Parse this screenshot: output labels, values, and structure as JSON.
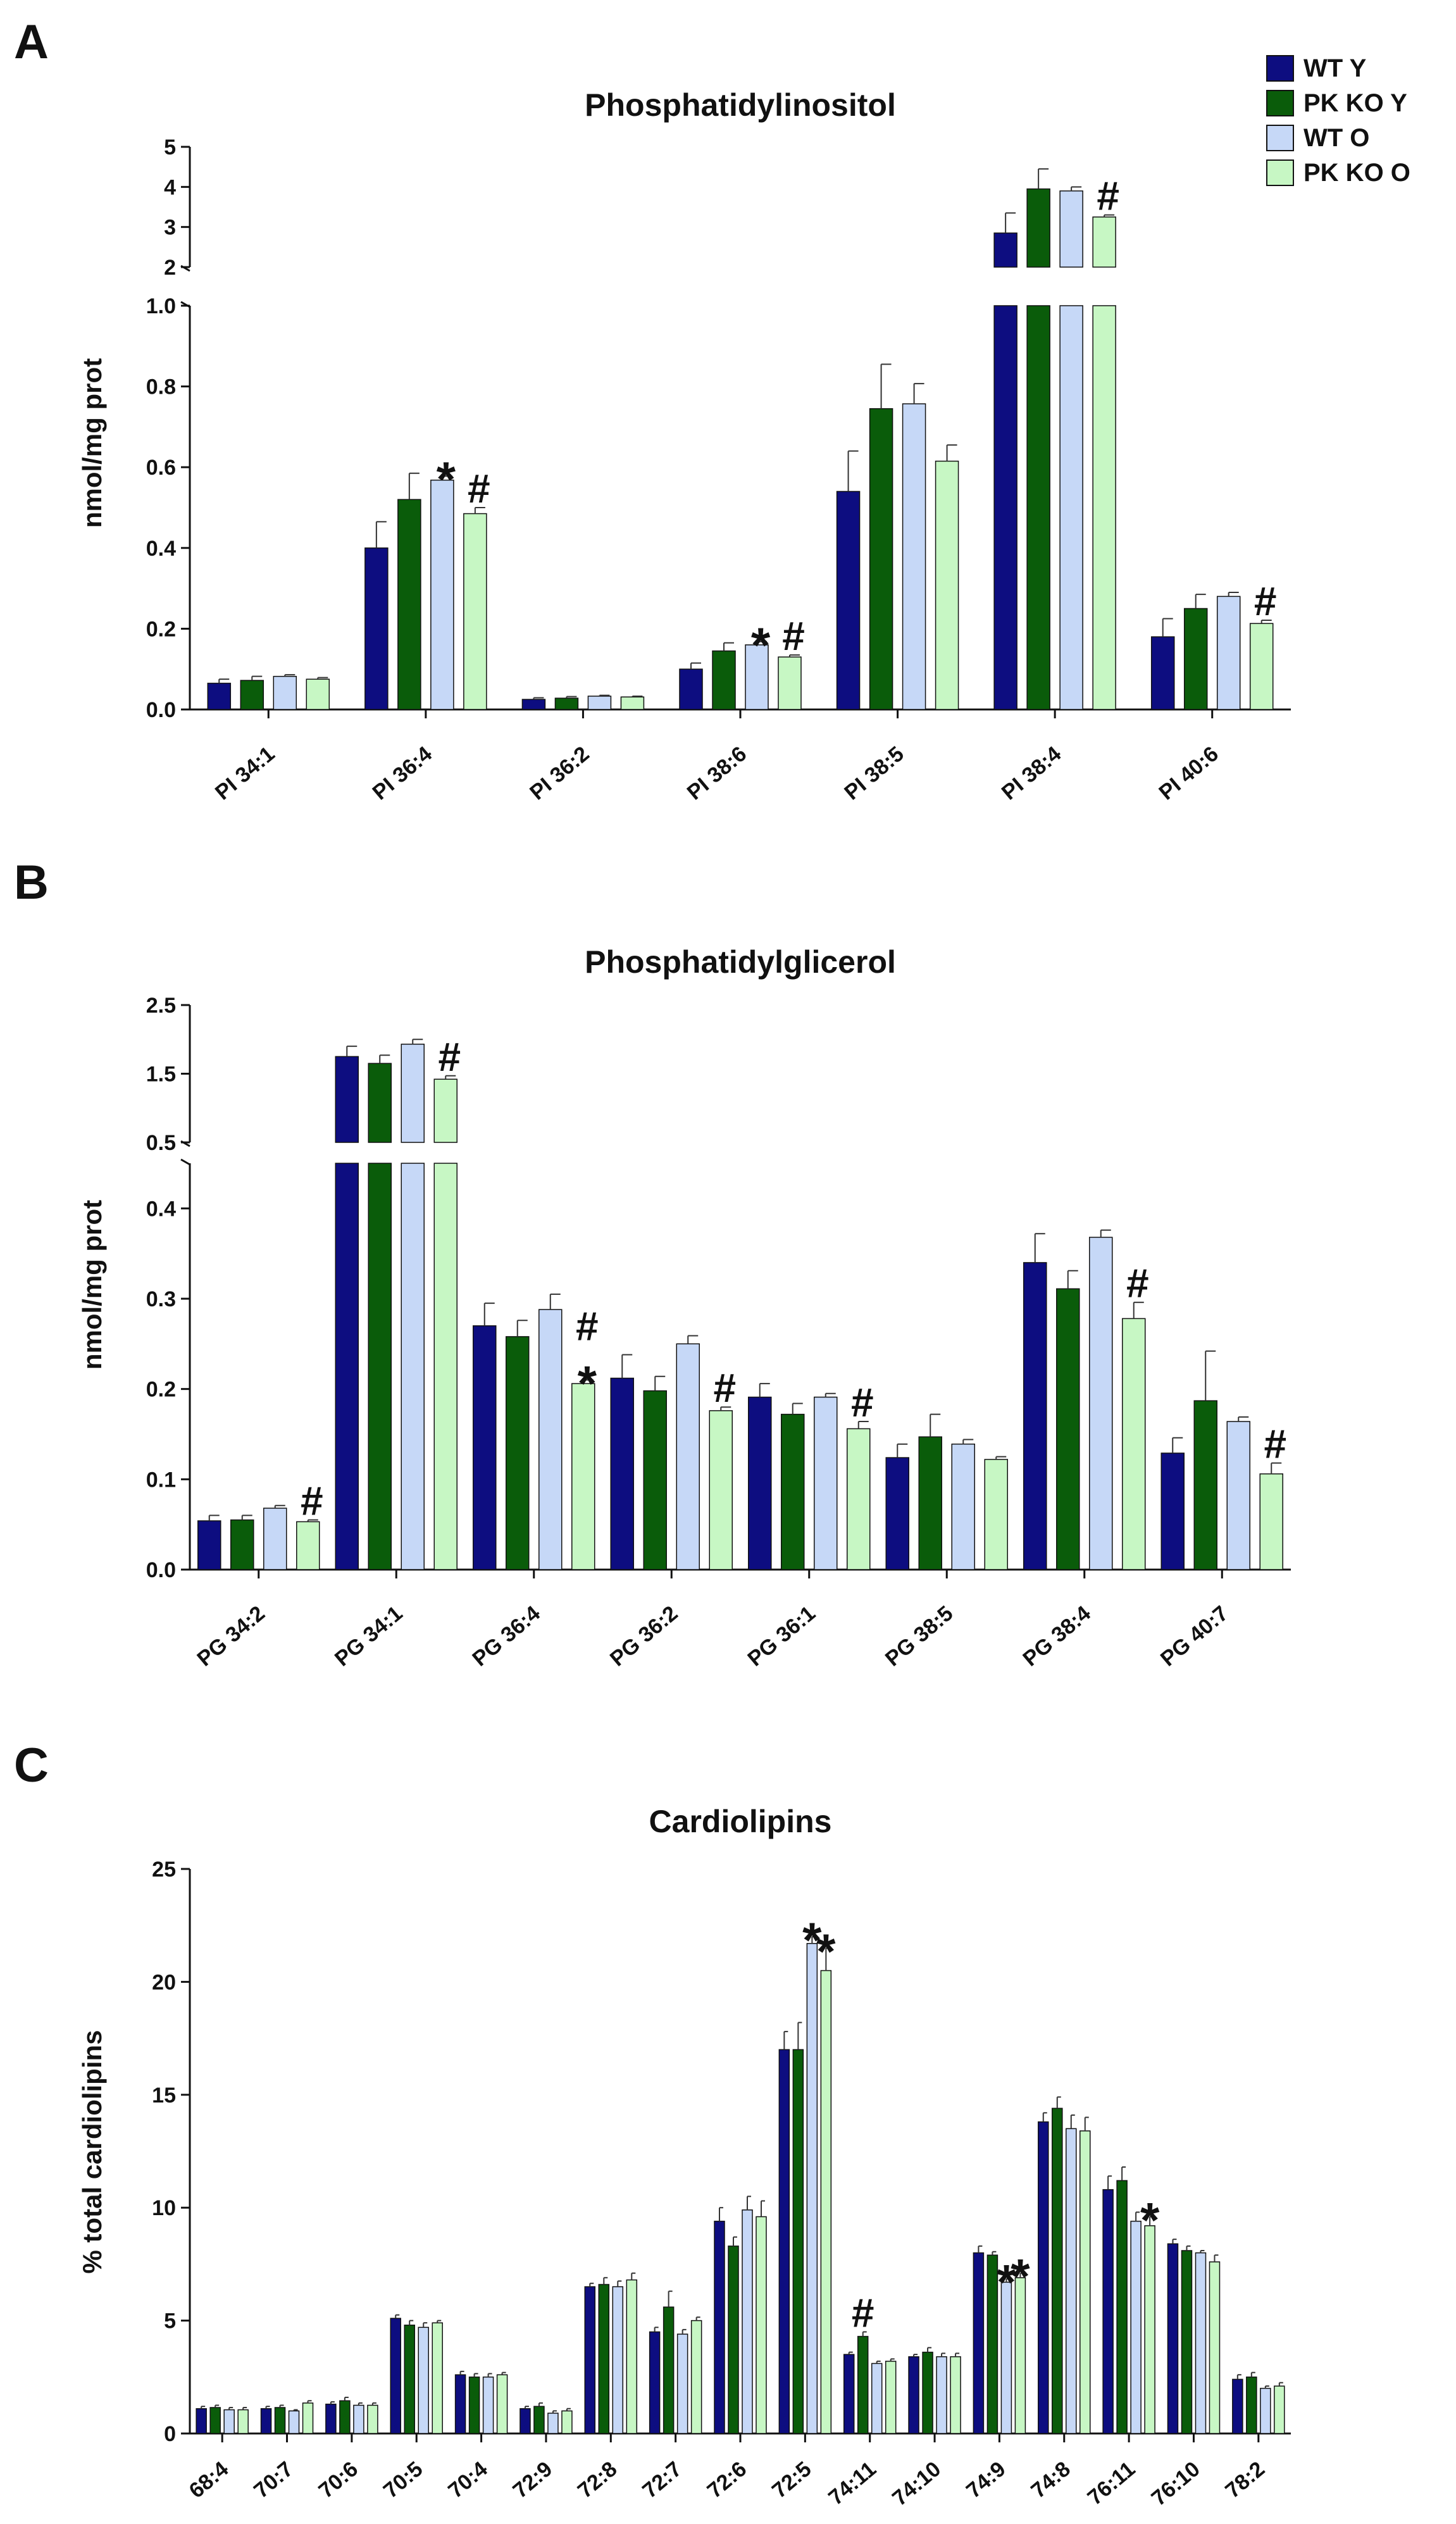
{
  "legend": {
    "items": [
      {
        "label": "WT Y",
        "color": "#0d0d80"
      },
      {
        "label": "PK KO Y",
        "color": "#0a5c0a"
      },
      {
        "label": "WT O",
        "color": "#c6d8f7"
      },
      {
        "label": "PK KO O",
        "color": "#c7f7c4"
      }
    ]
  },
  "chart_data": [
    {
      "panel_label": "A",
      "type": "bar",
      "title": "Phosphatidylinositol",
      "ylabel": "nmol/mg prot",
      "xlabel": "",
      "y_axis_break": true,
      "ylim_lower": [
        0,
        1.0
      ],
      "ylim_upper": [
        2,
        5
      ],
      "yticks_lower": [
        "0.0",
        "0.2",
        "0.4",
        "0.6",
        "0.8",
        "1.0"
      ],
      "yticks_upper": [
        "2",
        "3",
        "4",
        "5"
      ],
      "categories": [
        "PI 34:1",
        "PI 36:4",
        "PI 36:2",
        "PI 38:6",
        "PI 38:5",
        "PI 38:4",
        "PI 40:6"
      ],
      "series": [
        {
          "name": "WT Y",
          "values": [
            0.065,
            0.4,
            0.025,
            0.1,
            0.54,
            2.85,
            0.18
          ],
          "errors": [
            0.01,
            0.065,
            0.004,
            0.015,
            0.1,
            0.5,
            0.045
          ]
        },
        {
          "name": "PK KO Y",
          "values": [
            0.072,
            0.52,
            0.028,
            0.145,
            0.745,
            3.95,
            0.25
          ],
          "errors": [
            0.01,
            0.065,
            0.004,
            0.02,
            0.11,
            0.5,
            0.035
          ]
        },
        {
          "name": "WT O",
          "values": [
            0.082,
            0.568,
            0.033,
            0.16,
            0.757,
            3.9,
            0.28
          ],
          "errors": [
            0.004,
            0.01,
            0.002,
            0.008,
            0.05,
            0.1,
            0.01
          ]
        },
        {
          "name": "PK KO O",
          "values": [
            0.075,
            0.485,
            0.031,
            0.13,
            0.615,
            3.25,
            0.213
          ],
          "errors": [
            0.004,
            0.015,
            0.002,
            0.005,
            0.04,
            0.05,
            0.008
          ]
        }
      ],
      "annotations": [
        {
          "category": "PI 36:4",
          "series": "WT O",
          "text": "*"
        },
        {
          "category": "PI 36:4",
          "series": "PK KO O",
          "text": "#"
        },
        {
          "category": "PI 38:6",
          "series": "WT O",
          "text": "*"
        },
        {
          "category": "PI 38:6",
          "series": "PK KO O",
          "text": "#"
        },
        {
          "category": "PI 38:4",
          "series": "PK KO O",
          "text": "#"
        },
        {
          "category": "PI 40:6",
          "series": "PK KO O",
          "text": "#"
        }
      ]
    },
    {
      "panel_label": "B",
      "type": "bar",
      "title": "Phosphatidylglicerol",
      "ylabel": "nmol/mg prot",
      "xlabel": "",
      "y_axis_break": true,
      "ylim_lower": [
        0,
        0.45
      ],
      "ylim_upper": [
        0.5,
        2.5
      ],
      "yticks_lower": [
        "0.0",
        "0.1",
        "0.2",
        "0.3",
        "0.4"
      ],
      "yticks_upper": [
        "0.5",
        "1.5",
        "2.5"
      ],
      "categories": [
        "PG 34:2",
        "PG 34:1",
        "PG 36:4",
        "PG 36:2",
        "PG 36:1",
        "PG 38:5",
        "PG 38:4",
        "PG 40:7"
      ],
      "series": [
        {
          "name": "WT Y",
          "values": [
            0.054,
            1.75,
            0.27,
            0.212,
            0.191,
            0.124,
            0.34,
            0.129
          ],
          "errors": [
            0.006,
            0.15,
            0.025,
            0.026,
            0.015,
            0.015,
            0.032,
            0.017
          ]
        },
        {
          "name": "PK KO Y",
          "values": [
            0.055,
            1.65,
            0.258,
            0.198,
            0.172,
            0.147,
            0.311,
            0.187
          ],
          "errors": [
            0.005,
            0.12,
            0.018,
            0.016,
            0.012,
            0.025,
            0.02,
            0.055
          ]
        },
        {
          "name": "WT O",
          "values": [
            0.068,
            1.93,
            0.288,
            0.25,
            0.191,
            0.139,
            0.368,
            0.164
          ],
          "errors": [
            0.003,
            0.07,
            0.017,
            0.009,
            0.004,
            0.005,
            0.008,
            0.005
          ]
        },
        {
          "name": "PK KO O",
          "values": [
            0.053,
            1.42,
            0.206,
            0.176,
            0.156,
            0.122,
            0.278,
            0.106
          ],
          "errors": [
            0.002,
            0.05,
            0.004,
            0.004,
            0.008,
            0.003,
            0.018,
            0.012
          ]
        }
      ],
      "annotations": [
        {
          "category": "PG 34:2",
          "series": "PK KO O",
          "text": "#"
        },
        {
          "category": "PG 34:1",
          "series": "PK KO O",
          "text": "#"
        },
        {
          "category": "PG 36:4",
          "series": "PK KO O",
          "text": "*"
        },
        {
          "category": "PG 36:4",
          "series": "PK KO O",
          "text": "#"
        },
        {
          "category": "PG 36:2",
          "series": "PK KO O",
          "text": "#"
        },
        {
          "category": "PG 36:1",
          "series": "PK KO O",
          "text": "#"
        },
        {
          "category": "PG 38:4",
          "series": "PK KO O",
          "text": "#"
        },
        {
          "category": "PG 40:7",
          "series": "PK KO O",
          "text": "#"
        }
      ]
    },
    {
      "panel_label": "C",
      "type": "bar",
      "title": "Cardiolipins",
      "ylabel": "% total cardiolipins",
      "xlabel": "",
      "y_axis_break": false,
      "ylim": [
        0,
        25
      ],
      "yticks": [
        "0",
        "5",
        "10",
        "15",
        "20",
        "25"
      ],
      "categories": [
        "68:4",
        "70:7",
        "70:6",
        "70:5",
        "70:4",
        "72:9",
        "72:8",
        "72:7",
        "72:6",
        "72:5",
        "74:11",
        "74:10",
        "74:9",
        "74:8",
        "76:11",
        "76:10",
        "78:2"
      ],
      "series": [
        {
          "name": "WT Y",
          "values": [
            1.1,
            1.1,
            1.3,
            5.1,
            2.6,
            1.1,
            6.5,
            4.5,
            9.4,
            17.0,
            3.5,
            3.4,
            8.0,
            13.8,
            10.8,
            8.4,
            2.4
          ],
          "errors": [
            0.1,
            0.1,
            0.1,
            0.15,
            0.15,
            0.1,
            0.15,
            0.2,
            0.6,
            0.8,
            0.1,
            0.1,
            0.3,
            0.4,
            0.6,
            0.2,
            0.2
          ]
        },
        {
          "name": "PK KO Y",
          "values": [
            1.15,
            1.15,
            1.45,
            4.8,
            2.5,
            1.2,
            6.6,
            5.6,
            8.3,
            17.0,
            4.3,
            3.6,
            7.9,
            14.4,
            11.2,
            8.1,
            2.5
          ],
          "errors": [
            0.1,
            0.1,
            0.15,
            0.2,
            0.15,
            0.15,
            0.3,
            0.7,
            0.4,
            1.2,
            0.2,
            0.2,
            0.15,
            0.5,
            0.6,
            0.2,
            0.2
          ]
        },
        {
          "name": "WT O",
          "values": [
            1.05,
            1.0,
            1.25,
            4.7,
            2.5,
            0.9,
            6.5,
            4.4,
            9.9,
            21.7,
            3.1,
            3.4,
            6.7,
            13.5,
            9.4,
            8.0,
            2.0
          ],
          "errors": [
            0.1,
            0.05,
            0.1,
            0.2,
            0.15,
            0.1,
            0.25,
            0.2,
            0.6,
            0.3,
            0.1,
            0.15,
            0.15,
            0.6,
            0.4,
            0.1,
            0.1
          ]
        },
        {
          "name": "PK KO O",
          "values": [
            1.05,
            1.35,
            1.25,
            4.9,
            2.6,
            1.0,
            6.8,
            5.0,
            9.6,
            20.5,
            3.2,
            3.4,
            6.9,
            13.4,
            9.2,
            7.6,
            2.1
          ],
          "errors": [
            0.1,
            0.1,
            0.1,
            0.1,
            0.1,
            0.1,
            0.3,
            0.15,
            0.7,
            1.0,
            0.1,
            0.15,
            0.2,
            0.6,
            0.4,
            0.3,
            0.15
          ]
        }
      ],
      "annotations": [
        {
          "category": "72:5",
          "series": "WT O",
          "text": "*"
        },
        {
          "category": "72:5",
          "series": "PK KO O",
          "text": "*"
        },
        {
          "category": "74:11",
          "series": "PK KO Y",
          "text": "#"
        },
        {
          "category": "74:9",
          "series": "WT O",
          "text": "*"
        },
        {
          "category": "74:9",
          "series": "PK KO O",
          "text": "*"
        },
        {
          "category": "76:11",
          "series": "PK KO O",
          "text": "*"
        }
      ]
    }
  ]
}
